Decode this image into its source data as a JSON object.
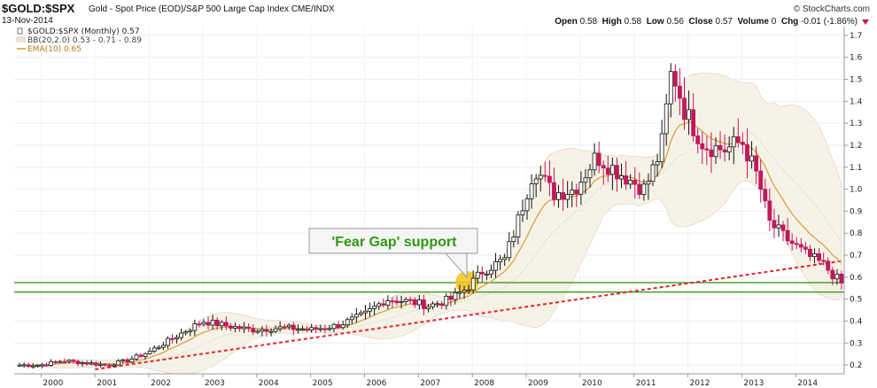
{
  "header": {
    "symbol": "$GOLD:$SPX",
    "description": "Gold - Spot Price (EOD)/S&P 500 Large Cap Index  CME/INDX",
    "date": "13-Nov-2014",
    "logo": "© StockCharts.com",
    "open_label": "Open",
    "open": "0.58",
    "high_label": "High",
    "high": "0.58",
    "low_label": "Low",
    "low": "0.56",
    "close_label": "Close",
    "close": "0.57",
    "volume_label": "Volume",
    "volume": "0",
    "chg_label": "Chg",
    "chg": "-0.01 (-1.86%)"
  },
  "colors": {
    "band_fill": "#f6f2e6",
    "band_edge": "#d8cfb8",
    "ema": "#d9a441",
    "up_candle": "#ffffff",
    "down_candle": "#c2185b",
    "support": "#3b9a1a",
    "trend": "#e0262d",
    "gap_dot": "#f3c21b",
    "annot": "#2e9a11"
  },
  "chart_data": {
    "type": "candlestick",
    "title": "$GOLD:$SPX (Monthly) 0.57",
    "legend": [
      {
        "name": "$GOLD:$SPX (Monthly)",
        "value": "0.57"
      },
      {
        "name": "BB(20,2.0)",
        "value": "0.53 - 0.71 - 0.89"
      },
      {
        "name": "EMA(10)",
        "value": "0.65"
      }
    ],
    "legend_title": "$GOLD:$SPX (Monthly) 0.57",
    "legend_bb": "BB(20,2.0) 0.53 - 0.71 - 0.89",
    "legend_ema": "EMA(10) 0.65",
    "x_range": [
      1999.5,
      2014.9
    ],
    "y_range": [
      0.16,
      1.74
    ],
    "x_ticks": [
      2000,
      2001,
      2002,
      2003,
      2004,
      2005,
      2006,
      2007,
      2008,
      2009,
      2010,
      2011,
      2012,
      2013,
      2014
    ],
    "y_ticks": [
      0.2,
      0.3,
      0.4,
      0.5,
      0.6,
      0.7,
      0.8,
      0.9,
      1.0,
      1.1,
      1.2,
      1.3,
      1.4,
      1.5,
      1.6,
      1.7
    ],
    "price_path": [
      [
        2000.0,
        0.2
      ],
      [
        2000.4,
        0.22
      ],
      [
        2000.8,
        0.21
      ],
      [
        2001.2,
        0.2
      ],
      [
        2001.6,
        0.22
      ],
      [
        2002.0,
        0.26
      ],
      [
        2002.5,
        0.33
      ],
      [
        2003.0,
        0.4
      ],
      [
        2003.4,
        0.38
      ],
      [
        2003.9,
        0.36
      ],
      [
        2004.5,
        0.37
      ],
      [
        2005.0,
        0.36
      ],
      [
        2005.5,
        0.38
      ],
      [
        2006.0,
        0.43
      ],
      [
        2006.4,
        0.5
      ],
      [
        2006.8,
        0.49
      ],
      [
        2007.2,
        0.47
      ],
      [
        2007.6,
        0.5
      ],
      [
        2007.9,
        0.55
      ],
      [
        2008.2,
        0.63
      ],
      [
        2008.6,
        0.68
      ],
      [
        2008.85,
        0.86
      ],
      [
        2009.15,
        1.1
      ],
      [
        2009.5,
        0.98
      ],
      [
        2009.9,
        1.0
      ],
      [
        2010.3,
        1.15
      ],
      [
        2010.7,
        1.08
      ],
      [
        2011.2,
        1.0
      ],
      [
        2011.5,
        1.18
      ],
      [
        2011.7,
        1.55
      ],
      [
        2011.95,
        1.35
      ],
      [
        2012.3,
        1.2
      ],
      [
        2012.7,
        1.18
      ],
      [
        2013.0,
        1.22
      ],
      [
        2013.3,
        1.05
      ],
      [
        2013.5,
        0.85
      ],
      [
        2013.8,
        0.78
      ],
      [
        2014.2,
        0.7
      ],
      [
        2014.5,
        0.66
      ],
      [
        2014.85,
        0.57
      ]
    ],
    "support_lines": [
      0.575,
      0.532
    ],
    "trendline": {
      "from": [
        2001.0,
        0.18
      ],
      "to": [
        2014.9,
        0.675
      ]
    },
    "gap_marker": {
      "x": 2007.9,
      "y": 0.575
    },
    "annotation": {
      "text": "'Fear Gap' support",
      "x": 2006.55,
      "y": 0.765
    }
  }
}
